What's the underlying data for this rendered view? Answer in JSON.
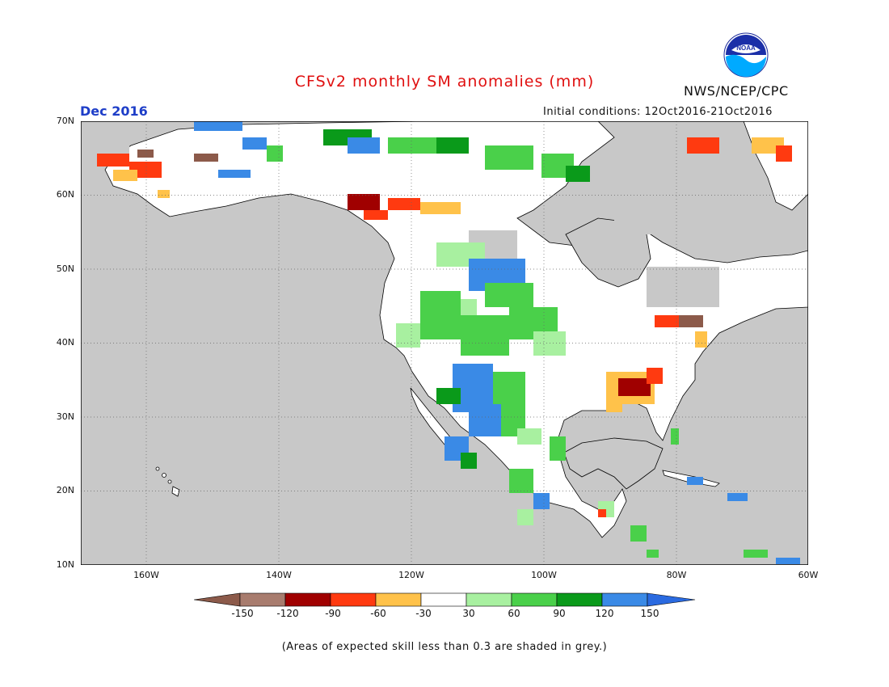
{
  "title": "CFSv2 monthly SM anomalies (mm)",
  "organization": "NWS/NCEP/CPC",
  "logo_text": "NOAA",
  "valid_month": "Dec 2016",
  "initial_conditions": "Initial conditions: 12Oct2016-21Oct2016",
  "footnote": "(Areas of expected skill less than 0.3 are shaded in grey.)",
  "lat_labels": [
    "70N",
    "60N",
    "50N",
    "40N",
    "30N",
    "20N",
    "10N"
  ],
  "lon_labels": [
    "160W",
    "140W",
    "120W",
    "100W",
    "80W",
    "60W"
  ],
  "colorbar": {
    "labels": [
      "-150",
      "-120",
      "-90",
      "-60",
      "-30",
      "30",
      "60",
      "90",
      "120",
      "150"
    ],
    "colors": [
      "#8c5a4a",
      "#a87c6e",
      "#a00000",
      "#e62a0a",
      "#ff9a2a",
      "#ffc64a",
      "#ffffff",
      "#a8f0a0",
      "#4ad04a",
      "#0a9a1a",
      "#3a8ae6",
      "#2a7ae0"
    ]
  },
  "map_colors": {
    "ocean": "#c8c8c8",
    "land_no_skill": "#c8c8c8",
    "land_skill": "#ffffff",
    "coast": "#000000"
  }
}
